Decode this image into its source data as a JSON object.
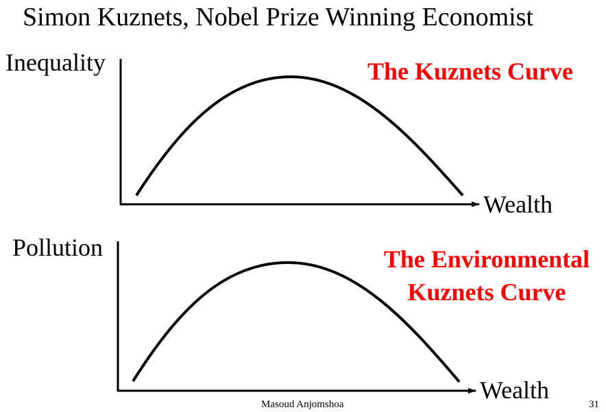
{
  "slide": {
    "title": "Simon Kuznets, Nobel Prize Winning Economist",
    "author": "Masoud Anjomshoa",
    "page_number": "31",
    "accent_color": "#ff0000"
  },
  "chart_data": [
    {
      "type": "line",
      "title": "The Kuznets Curve",
      "ylabel": "Inequality",
      "xlabel": "Wealth",
      "shape": "inverted-U",
      "grid": false,
      "legend": "none"
    },
    {
      "type": "line",
      "title_lines": [
        "The Environmental",
        "Kuznets Curve"
      ],
      "ylabel": "Pollution",
      "xlabel": "Wealth",
      "shape": "inverted-U",
      "grid": false,
      "legend": "none"
    }
  ]
}
